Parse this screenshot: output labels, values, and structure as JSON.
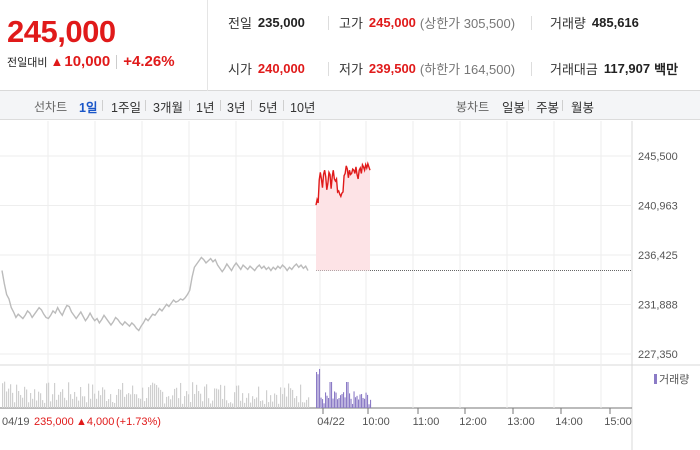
{
  "quote": {
    "price": "245,000",
    "change_label": "전일대비",
    "change_arrow": "▲",
    "change_value": "10,000",
    "change_rate": "+4.26%"
  },
  "stats": {
    "prev_close_label": "전일",
    "prev_close": "235,000",
    "high_label": "고가",
    "high": "245,000",
    "upper_limit": "(상한가 305,500)",
    "volume_label": "거래량",
    "volume": "485,616",
    "open_label": "시가",
    "open": "240,000",
    "low_label": "저가",
    "low": "239,500",
    "lower_limit": "(하한가 164,500)",
    "amount_label": "거래대금",
    "amount": "117,907",
    "amount_unit": "백만"
  },
  "toolbar": {
    "line_label": "선차트",
    "line_periods": [
      "1일",
      "1주일",
      "3개월",
      "1년",
      "3년",
      "5년",
      "10년"
    ],
    "active_period": "1일",
    "candle_label": "봉차트",
    "candle_periods": [
      "일봉",
      "주봉",
      "월봉"
    ]
  },
  "colors": {
    "up": "#e01a1a",
    "prev": "#bbbbbb",
    "today_fill": "#fde3e6",
    "volume_prev": "#cfcfcf",
    "volume_today": "#8b7bc6",
    "active": "#1a56c8"
  },
  "chart_data": {
    "type": "line",
    "y_ticks": [
      "245,500",
      "240,963",
      "236,425",
      "231,888",
      "227,350"
    ],
    "ylim": [
      227350,
      245500
    ],
    "reference_line": 235000,
    "x_labels": [
      "04/22",
      "10:00",
      "11:00",
      "12:00",
      "13:00",
      "14:00",
      "15:00"
    ],
    "volume_legend": "거래량",
    "prev_day": {
      "date": "04/19",
      "close": "235,000",
      "change": "▲4,000",
      "change_rate": "(+1.73%)",
      "values": [
        235000,
        233800,
        232800,
        232400,
        231600,
        231200,
        230700,
        231000,
        230800,
        230600,
        230900,
        231300,
        231100,
        230700,
        231000,
        231300,
        231600,
        231400,
        231000,
        230700,
        230600,
        230900,
        231300,
        231100,
        231600,
        231200,
        230900,
        231400,
        231800,
        231700,
        231200,
        230900,
        230600,
        230900,
        231200,
        230800,
        230400,
        230700,
        231100,
        230700,
        230400,
        230600,
        230200,
        230500,
        230900,
        230600,
        230300,
        230000,
        230300,
        230700,
        230500,
        230200,
        230000,
        230300,
        230100,
        229900,
        230200,
        230000,
        229700,
        229500,
        229900,
        230200,
        230600,
        230400,
        230700,
        231000,
        230900,
        231200,
        231500,
        231300,
        231600,
        231900,
        231700,
        232000,
        232300,
        232100,
        232200,
        232400,
        232300,
        232500,
        232800,
        233200,
        234400,
        235300,
        235600,
        235900,
        236200,
        236000,
        235700,
        235900,
        236100,
        235800,
        236000,
        235500,
        235200,
        234900,
        235200,
        235600,
        235300,
        235000,
        235400,
        235700,
        235400,
        235100,
        235500,
        235300,
        235100,
        235400,
        235200,
        235000,
        235300,
        235500,
        235200,
        235400,
        235100,
        235300,
        235000,
        235300,
        235100,
        235400,
        235200,
        235500,
        235300,
        235000,
        235300,
        235100,
        235400,
        235600,
        235300,
        235500,
        235200,
        235400,
        235000
      ]
    },
    "today": {
      "values": [
        241000,
        241500,
        241200,
        243300,
        244000,
        243400,
        242600,
        243800,
        244200,
        243600,
        242400,
        243000,
        244000,
        243800,
        242500,
        243600,
        244200,
        243400,
        243200,
        243400,
        242200,
        242300,
        242000,
        241800,
        242100,
        242200,
        243700,
        243900,
        244600,
        244300,
        243500,
        244200,
        243800,
        243900,
        244300,
        244200,
        243900,
        244500,
        243800,
        243400,
        244200,
        244400,
        243900,
        244700,
        244500,
        244200,
        244700,
        244400,
        244800,
        244500,
        244200
      ]
    }
  }
}
